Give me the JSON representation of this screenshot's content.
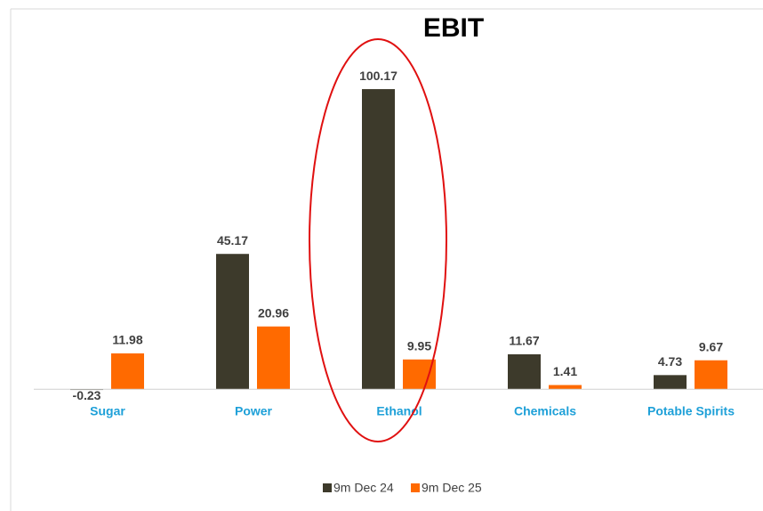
{
  "chart_data": {
    "type": "bar",
    "title": "EBIT",
    "categories": [
      "Sugar",
      "Power",
      "Ethanol",
      "Chemicals",
      "Potable Spirits"
    ],
    "series": [
      {
        "name": "9m Dec 24",
        "color": "#3d3a2b",
        "values": [
          -0.23,
          45.17,
          100.17,
          11.67,
          4.73
        ]
      },
      {
        "name": "9m Dec 25",
        "color": "#ff6a00",
        "values": [
          11.98,
          20.96,
          9.95,
          1.41,
          9.67
        ]
      }
    ],
    "ylim": [
      -2,
      110
    ],
    "legend": "bottom"
  }
}
